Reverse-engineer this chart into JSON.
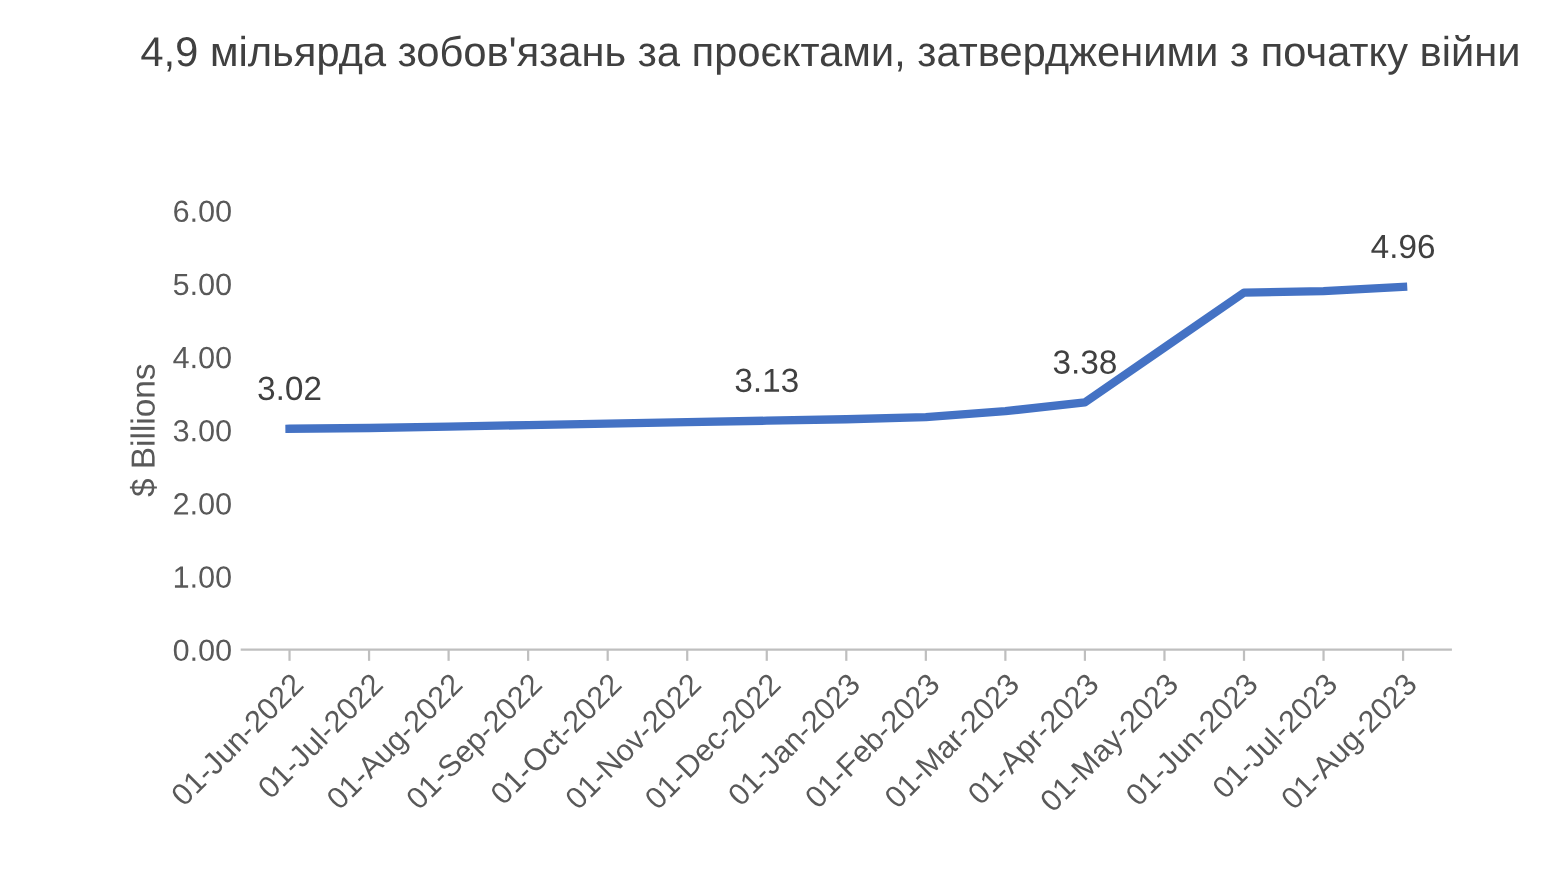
{
  "chart_data": {
    "type": "line",
    "title": "4,9 мільярда зобов'язань за проєктами, затвердженими з початку війни",
    "ylabel": "$ Billions",
    "categories": [
      "01-Jun-2022",
      "01-Jul-2022",
      "01-Aug-2022",
      "01-Sep-2022",
      "01-Oct-2022",
      "01-Nov-2022",
      "01-Dec-2022",
      "01-Jan-2023",
      "01-Feb-2023",
      "01-Mar-2023",
      "01-Apr-2023",
      "01-May-2023",
      "01-Jun-2023",
      "01-Jul-2023",
      "01-Aug-2023"
    ],
    "series": [
      {
        "color": "#4472c4",
        "values": [
          3.02,
          3.03,
          3.05,
          3.07,
          3.09,
          3.11,
          3.13,
          3.15,
          3.18,
          3.26,
          3.38,
          4.13,
          4.88,
          4.9,
          4.96
        ],
        "value_labels": [
          "3.02",
          null,
          null,
          null,
          null,
          null,
          "3.13",
          null,
          null,
          null,
          "3.38",
          null,
          null,
          null,
          "4.96"
        ]
      }
    ],
    "ylim": [
      0,
      6
    ],
    "yticks": [
      {
        "value": 0,
        "label": "0.00"
      },
      {
        "value": 1,
        "label": "1.00"
      },
      {
        "value": 2,
        "label": "2.00"
      },
      {
        "value": 3,
        "label": "3.00"
      },
      {
        "value": 4,
        "label": "4.00"
      },
      {
        "value": 5,
        "label": "5.00"
      },
      {
        "value": 6,
        "label": "6.00"
      }
    ],
    "grid": false,
    "legend": false,
    "marker": "none",
    "line_style": "solid"
  }
}
